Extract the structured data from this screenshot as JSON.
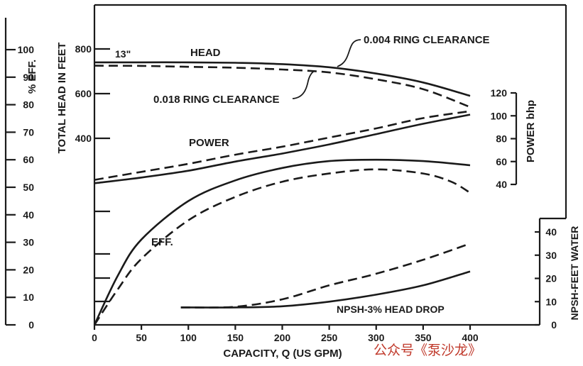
{
  "chart_data": {
    "type": "line",
    "xlabel": "CAPACITY,  Q  (US  GPM)",
    "x_ticks": [
      0,
      50,
      100,
      150,
      200,
      250,
      300,
      350,
      400
    ],
    "xlim": [
      0,
      400
    ],
    "axes": {
      "head": {
        "label": "TOTAL  HEAD  IN  FEET",
        "ticks": [
          400,
          600,
          800
        ],
        "range": [
          400,
          800
        ]
      },
      "eff": {
        "label": "% EFF.",
        "ticks": [
          0,
          10,
          20,
          30,
          40,
          50,
          60,
          70,
          80,
          90,
          100
        ],
        "range": [
          0,
          100
        ]
      },
      "power": {
        "label": "POWER  bhp",
        "ticks": [
          40,
          60,
          80,
          100,
          120
        ],
        "range": [
          40,
          120
        ]
      },
      "npsh": {
        "label": "NPSH-FEET  WATER",
        "ticks": [
          0,
          10,
          20,
          30,
          40
        ],
        "range": [
          0,
          40
        ]
      }
    },
    "impeller_label": "13\"",
    "series": [
      {
        "name": "HEAD",
        "group": "0.004 RING CLEARANCE",
        "axis": "head",
        "style": "solid",
        "x": [
          0,
          50,
          100,
          150,
          200,
          250,
          300,
          350,
          400
        ],
        "y": [
          740,
          740,
          740,
          738,
          732,
          718,
          690,
          650,
          590
        ]
      },
      {
        "name": "HEAD",
        "group": "0.018 RING CLEARANCE",
        "axis": "head",
        "style": "dashed",
        "x": [
          0,
          50,
          100,
          150,
          200,
          250,
          300,
          350,
          400
        ],
        "y": [
          725,
          724,
          720,
          716,
          708,
          695,
          664,
          620,
          540
        ]
      },
      {
        "name": "POWER",
        "group": "0.004 RING CLEARANCE",
        "axis": "power",
        "style": "solid",
        "x": [
          0,
          50,
          100,
          150,
          200,
          250,
          300,
          350,
          400
        ],
        "y": [
          41,
          46,
          52,
          60,
          67,
          75,
          84,
          93,
          101
        ]
      },
      {
        "name": "POWER",
        "group": "0.018 RING CLEARANCE",
        "axis": "power",
        "style": "dashed",
        "x": [
          0,
          50,
          100,
          150,
          200,
          250,
          300,
          350,
          400
        ],
        "y": [
          44,
          51,
          58,
          66,
          73,
          81,
          89,
          98,
          104
        ]
      },
      {
        "name": "EFF.",
        "group": "0.004 RING CLEARANCE",
        "axis": "eff",
        "style": "solid",
        "x": [
          0,
          25,
          50,
          100,
          150,
          200,
          250,
          300,
          350,
          400
        ],
        "y": [
          0,
          18,
          31,
          45,
          52.5,
          57,
          59.5,
          60,
          59.5,
          58
        ]
      },
      {
        "name": "EFF.",
        "group": "0.018 RING CLEARANCE",
        "axis": "eff",
        "style": "dashed",
        "x": [
          0,
          25,
          50,
          100,
          150,
          200,
          250,
          300,
          350,
          380,
          400
        ],
        "y": [
          0,
          13,
          24,
          38,
          46.5,
          52,
          55,
          56.5,
          55,
          52,
          48
        ]
      },
      {
        "name": "NPSH-3%  HEAD  DROP",
        "group": "0.004 RING CLEARANCE",
        "axis": "npsh",
        "style": "solid",
        "x": [
          92,
          150,
          200,
          250,
          300,
          350,
          400
        ],
        "y": [
          7.5,
          7.5,
          8,
          10,
          13,
          17,
          23
        ]
      },
      {
        "name": "NPSH-3%  HEAD  DROP",
        "group": "0.018 RING CLEARANCE",
        "axis": "npsh",
        "style": "dashed",
        "x": [
          92,
          150,
          200,
          250,
          300,
          350,
          400
        ],
        "y": [
          7.5,
          7.8,
          11,
          17,
          22,
          28,
          35
        ]
      }
    ],
    "annotations": {
      "head_label": "HEAD",
      "power_label": "POWER",
      "eff_label": "EFF.",
      "npsh_label": "NPSH-3%   HEAD   DROP",
      "clearance_solid": "0.004  RING  CLEARANCE",
      "clearance_dashed": "0.018  RING  CLEARANCE"
    },
    "grid": false
  },
  "watermark": "公众号《泵沙龙》"
}
